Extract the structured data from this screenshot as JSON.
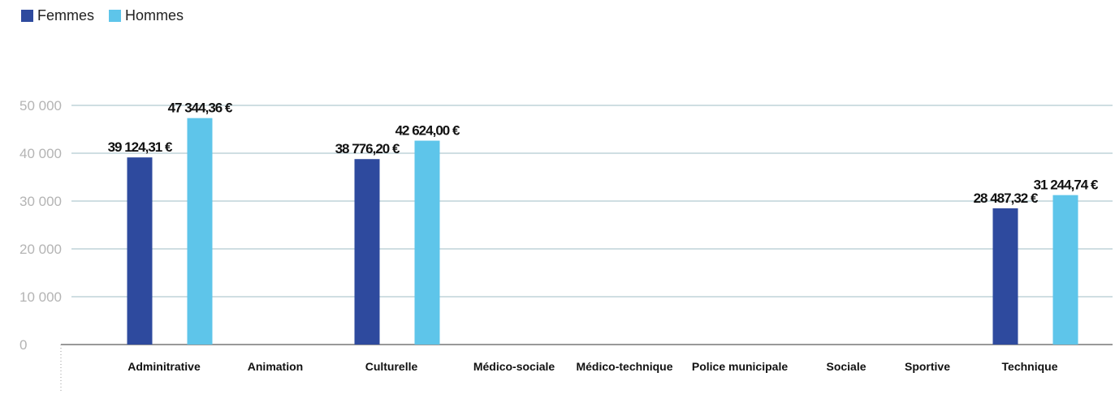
{
  "legend": [
    {
      "label": "Femmes",
      "color": "#2e4a9e"
    },
    {
      "label": "Hommes",
      "color": "#5ec5ea"
    }
  ],
  "chart_data": {
    "type": "bar",
    "categories": [
      "Adminitrative",
      "Animation",
      "Culturelle",
      "Médico-sociale",
      "Médico-technique",
      "Police municipale",
      "Sociale",
      "Sportive",
      "Technique"
    ],
    "series": [
      {
        "name": "Femmes",
        "values": [
          39124.31,
          null,
          38776.2,
          null,
          null,
          null,
          null,
          null,
          28487.32
        ],
        "labels": [
          "39 124,31 €",
          "",
          "38 776,20 €",
          "",
          "",
          "",
          "",
          "",
          "28 487,32 €"
        ]
      },
      {
        "name": "Hommes",
        "values": [
          47344.36,
          null,
          42624.0,
          null,
          null,
          null,
          null,
          null,
          31244.74
        ],
        "labels": [
          "47 344,36 €",
          "",
          "42 624,00 €",
          "",
          "",
          "",
          "",
          "",
          "31 244,74 €"
        ]
      }
    ],
    "yticks": [
      {
        "value": 0,
        "label": "0"
      },
      {
        "value": 10000,
        "label": "10 000"
      },
      {
        "value": 20000,
        "label": "20 000"
      },
      {
        "value": 30000,
        "label": "30 000"
      },
      {
        "value": 40000,
        "label": "40 000"
      },
      {
        "value": 50000,
        "label": "50 000"
      }
    ],
    "ylim": [
      0,
      50000
    ],
    "grid": true,
    "legend_position": "top-left"
  }
}
